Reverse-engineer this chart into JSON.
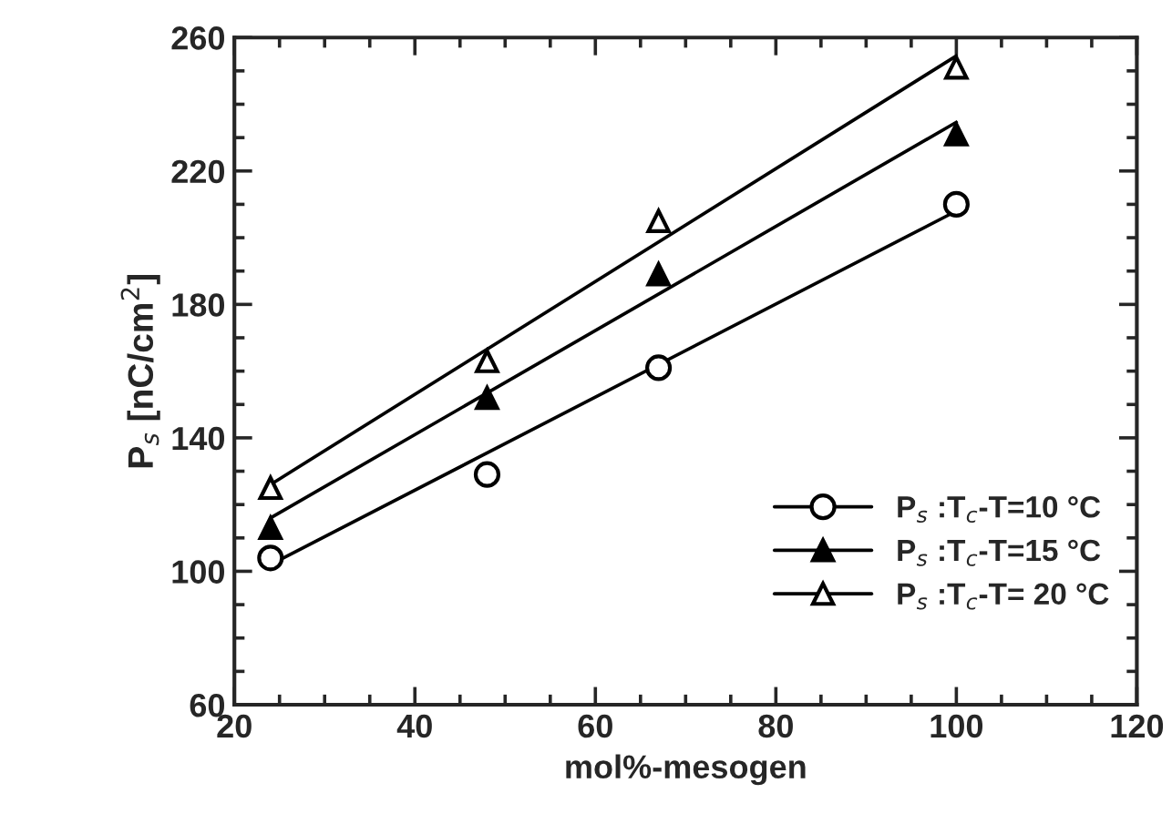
{
  "chart_data": {
    "type": "scatter",
    "xlabel": "mol%-mesogen",
    "ylabel": "P$_{s}$ [nC/cm$^{2}$]",
    "xlim": [
      20,
      120
    ],
    "xticks": [
      20,
      40,
      60,
      80,
      100,
      120
    ],
    "ylim": [
      60,
      260
    ],
    "yticks": [
      60,
      100,
      140,
      180,
      220,
      260
    ],
    "grid": false,
    "legend": "bottom right",
    "series": [
      {
        "name": "P$_{s}$ :T$_{c}$-T=10 °C",
        "marker": "circle",
        "color": "#000000",
        "x": [
          24,
          48,
          67,
          100
        ],
        "values": [
          104,
          129,
          161,
          210
        ]
      },
      {
        "name": "P$_{s}$ :T$_{c}$-T=15 °C",
        "marker": "triangle",
        "color": "#000000",
        "x": [
          24,
          48,
          67,
          100
        ],
        "values": [
          113,
          152,
          189,
          231
        ]
      },
      {
        "name": "P$_{s}$ :T$_{c}$-T= 20 °C",
        "marker": "triangle",
        "color": "#000000",
        "x": [
          24,
          48,
          67,
          100
        ],
        "values": [
          125,
          163,
          205,
          251
        ]
      },
      {
        "type": "line",
        "color": "#000000",
        "x": [
          24,
          100
        ],
        "values": [
          102,
          208
        ]
      },
      {
        "type": "line",
        "color": "#000000",
        "x": [
          24,
          100
        ],
        "values": [
          116,
          234.6
        ]
      },
      {
        "type": "line",
        "color": "#000000",
        "x": [
          24,
          100
        ],
        "values": [
          126,
          254.5
        ]
      }
    ]
  }
}
